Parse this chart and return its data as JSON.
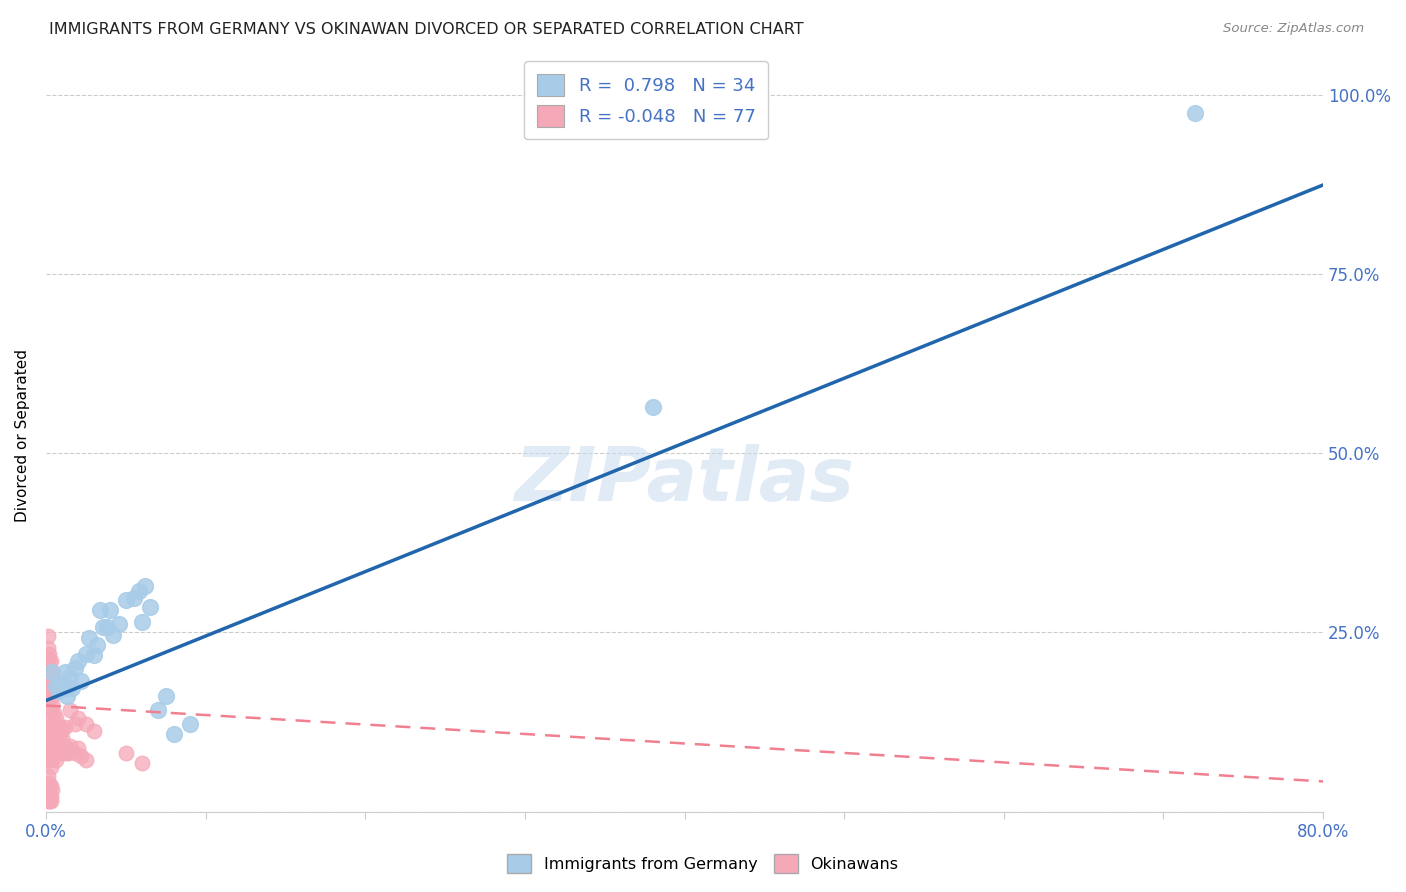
{
  "title": "IMMIGRANTS FROM GERMANY VS OKINAWAN DIVORCED OR SEPARATED CORRELATION CHART",
  "source": "Source: ZipAtlas.com",
  "ylabel": "Divorced or Separated",
  "watermark": "ZIPatlas",
  "xmin": 0.0,
  "xmax": 0.8,
  "ymin": 0.0,
  "ymax": 1.05,
  "blue_R": 0.798,
  "blue_N": 34,
  "pink_R": -0.048,
  "pink_N": 77,
  "blue_color": "#A8CCE8",
  "pink_color": "#F5A8B8",
  "blue_line_color": "#2166AC",
  "pink_line_color": "#F08090",
  "axis_label_color": "#4472C4",
  "legend_text_color": "#4472C4",
  "title_color": "#222222",
  "grid_color": "#CCCCCC",
  "blue_scatter": [
    [
      0.004,
      0.195
    ],
    [
      0.006,
      0.175
    ],
    [
      0.008,
      0.168
    ],
    [
      0.01,
      0.178
    ],
    [
      0.012,
      0.195
    ],
    [
      0.013,
      0.162
    ],
    [
      0.014,
      0.172
    ],
    [
      0.015,
      0.188
    ],
    [
      0.016,
      0.172
    ],
    [
      0.018,
      0.2
    ],
    [
      0.02,
      0.21
    ],
    [
      0.022,
      0.182
    ],
    [
      0.025,
      0.22
    ],
    [
      0.027,
      0.242
    ],
    [
      0.03,
      0.218
    ],
    [
      0.032,
      0.232
    ],
    [
      0.034,
      0.282
    ],
    [
      0.036,
      0.258
    ],
    [
      0.038,
      0.258
    ],
    [
      0.04,
      0.282
    ],
    [
      0.042,
      0.246
    ],
    [
      0.046,
      0.262
    ],
    [
      0.05,
      0.295
    ],
    [
      0.055,
      0.298
    ],
    [
      0.058,
      0.308
    ],
    [
      0.06,
      0.265
    ],
    [
      0.062,
      0.315
    ],
    [
      0.065,
      0.285
    ],
    [
      0.07,
      0.142
    ],
    [
      0.075,
      0.162
    ],
    [
      0.08,
      0.108
    ],
    [
      0.09,
      0.122
    ],
    [
      0.38,
      0.565
    ],
    [
      0.72,
      0.975
    ]
  ],
  "pink_scatter": [
    [
      0.001,
      0.08
    ],
    [
      0.001,
      0.1
    ],
    [
      0.001,
      0.12
    ],
    [
      0.001,
      0.158
    ],
    [
      0.001,
      0.192
    ],
    [
      0.001,
      0.215
    ],
    [
      0.001,
      0.228
    ],
    [
      0.001,
      0.245
    ],
    [
      0.001,
      0.182
    ],
    [
      0.001,
      0.165
    ],
    [
      0.001,
      0.05
    ],
    [
      0.001,
      0.03
    ],
    [
      0.001,
      0.025
    ],
    [
      0.001,
      0.015
    ],
    [
      0.002,
      0.072
    ],
    [
      0.002,
      0.09
    ],
    [
      0.002,
      0.118
    ],
    [
      0.002,
      0.145
    ],
    [
      0.002,
      0.175
    ],
    [
      0.002,
      0.2
    ],
    [
      0.002,
      0.182
    ],
    [
      0.002,
      0.155
    ],
    [
      0.002,
      0.21
    ],
    [
      0.002,
      0.22
    ],
    [
      0.002,
      0.04
    ],
    [
      0.002,
      0.025
    ],
    [
      0.002,
      0.015
    ],
    [
      0.003,
      0.062
    ],
    [
      0.003,
      0.082
    ],
    [
      0.003,
      0.1
    ],
    [
      0.003,
      0.13
    ],
    [
      0.003,
      0.16
    ],
    [
      0.003,
      0.192
    ],
    [
      0.003,
      0.14
    ],
    [
      0.003,
      0.21
    ],
    [
      0.003,
      0.035
    ],
    [
      0.003,
      0.02
    ],
    [
      0.003,
      0.015
    ],
    [
      0.004,
      0.072
    ],
    [
      0.004,
      0.092
    ],
    [
      0.004,
      0.12
    ],
    [
      0.004,
      0.15
    ],
    [
      0.004,
      0.188
    ],
    [
      0.004,
      0.03
    ],
    [
      0.005,
      0.082
    ],
    [
      0.005,
      0.108
    ],
    [
      0.005,
      0.138
    ],
    [
      0.005,
      0.165
    ],
    [
      0.006,
      0.072
    ],
    [
      0.006,
      0.102
    ],
    [
      0.006,
      0.13
    ],
    [
      0.007,
      0.082
    ],
    [
      0.007,
      0.11
    ],
    [
      0.008,
      0.092
    ],
    [
      0.008,
      0.12
    ],
    [
      0.009,
      0.082
    ],
    [
      0.009,
      0.108
    ],
    [
      0.01,
      0.088
    ],
    [
      0.01,
      0.115
    ],
    [
      0.011,
      0.092
    ],
    [
      0.012,
      0.082
    ],
    [
      0.013,
      0.088
    ],
    [
      0.014,
      0.082
    ],
    [
      0.015,
      0.092
    ],
    [
      0.018,
      0.082
    ],
    [
      0.02,
      0.088
    ],
    [
      0.022,
      0.078
    ],
    [
      0.025,
      0.072
    ],
    [
      0.02,
      0.13
    ],
    [
      0.025,
      0.122
    ],
    [
      0.015,
      0.142
    ],
    [
      0.03,
      0.112
    ],
    [
      0.012,
      0.118
    ],
    [
      0.01,
      0.102
    ],
    [
      0.018,
      0.122
    ],
    [
      0.05,
      0.082
    ],
    [
      0.06,
      0.068
    ]
  ],
  "blue_trendline": [
    [
      0.0,
      0.155
    ],
    [
      0.8,
      0.875
    ]
  ],
  "pink_trendline": [
    [
      0.0,
      0.148
    ],
    [
      0.8,
      0.042
    ]
  ]
}
